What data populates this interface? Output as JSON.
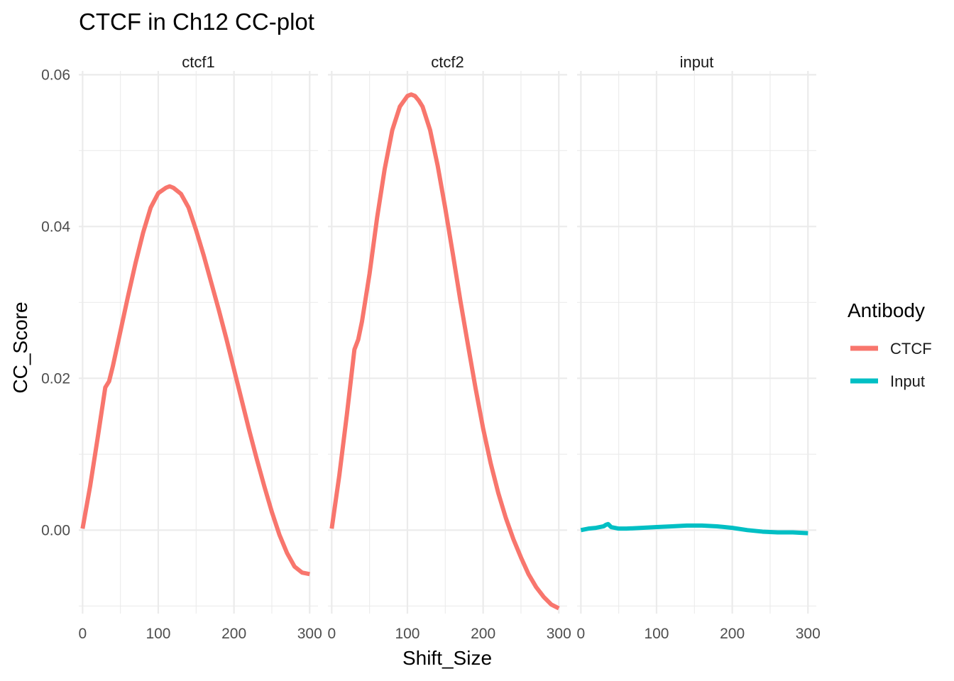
{
  "chart_data": {
    "type": "line",
    "title": "CTCF in Ch12 CC-plot",
    "xlabel": "Shift_Size",
    "ylabel": "CC_Score",
    "xlim": [
      -5,
      311
    ],
    "ylim": [
      -0.011,
      0.0605
    ],
    "x_ticks": [
      0,
      100,
      200,
      300
    ],
    "x_tick_labels": [
      "0",
      "100",
      "200",
      "300"
    ],
    "y_ticks": [
      0,
      0.02,
      0.04,
      0.06
    ],
    "y_tick_labels": [
      "0.00",
      "0.02",
      "0.04",
      "0.06"
    ],
    "x_minor_ticks": [
      50,
      150,
      250
    ],
    "y_minor_ticks": [
      -0.01,
      0.01,
      0.03,
      0.05
    ],
    "grid": true,
    "legend": {
      "title": "Antibody",
      "position": "right",
      "entries": [
        {
          "label": "CTCF",
          "color": "#F8766D"
        },
        {
          "label": "Input",
          "color": "#00BFC4"
        }
      ]
    },
    "facets": [
      {
        "strip": "ctcf1",
        "series": "CTCF",
        "color": "#F8766D",
        "x": [
          0,
          10,
          20,
          30,
          35,
          40,
          50,
          60,
          70,
          80,
          90,
          100,
          110,
          115,
          120,
          130,
          140,
          150,
          160,
          170,
          180,
          190,
          200,
          210,
          220,
          230,
          240,
          250,
          260,
          270,
          280,
          290,
          300
        ],
        "y": [
          0.0002,
          0.0058,
          0.0122,
          0.0188,
          0.0196,
          0.0216,
          0.0262,
          0.0308,
          0.0352,
          0.0392,
          0.0425,
          0.0444,
          0.0451,
          0.0453,
          0.0451,
          0.0443,
          0.0425,
          0.0395,
          0.0362,
          0.0326,
          0.029,
          0.0252,
          0.0212,
          0.0172,
          0.0132,
          0.0094,
          0.0058,
          0.0024,
          -0.0006,
          -0.003,
          -0.0048,
          -0.0056,
          -0.0058
        ]
      },
      {
        "strip": "ctcf2",
        "series": "CTCF",
        "color": "#F8766D",
        "x": [
          0,
          10,
          20,
          30,
          35,
          40,
          50,
          60,
          70,
          80,
          90,
          100,
          105,
          110,
          115,
          120,
          130,
          140,
          150,
          160,
          170,
          180,
          190,
          200,
          210,
          220,
          230,
          240,
          250,
          260,
          270,
          280,
          290,
          300
        ],
        "y": [
          0.0002,
          0.0072,
          0.0152,
          0.0238,
          0.0251,
          0.0275,
          0.0338,
          0.0412,
          0.0476,
          0.0527,
          0.0558,
          0.0572,
          0.0574,
          0.0572,
          0.0566,
          0.0558,
          0.0527,
          0.048,
          0.0424,
          0.0364,
          0.0302,
          0.0244,
          0.0187,
          0.0134,
          0.0088,
          0.0049,
          0.0016,
          -0.0012,
          -0.0036,
          -0.0058,
          -0.0075,
          -0.0088,
          -0.0098,
          -0.0103
        ]
      },
      {
        "strip": "input",
        "series": "Input",
        "color": "#00BFC4",
        "x": [
          0,
          10,
          20,
          30,
          33,
          36,
          40,
          50,
          60,
          80,
          100,
          120,
          140,
          150,
          160,
          180,
          200,
          220,
          240,
          260,
          280,
          300
        ],
        "y": [
          0.0,
          0.0002,
          0.0003,
          0.0005,
          0.0007,
          0.0008,
          0.0004,
          0.0002,
          0.0002,
          0.0003,
          0.0004,
          0.0005,
          0.0006,
          0.0006,
          0.0006,
          0.0005,
          0.0003,
          0.0,
          -0.0002,
          -0.0003,
          -0.0003,
          -0.0004
        ]
      }
    ]
  }
}
